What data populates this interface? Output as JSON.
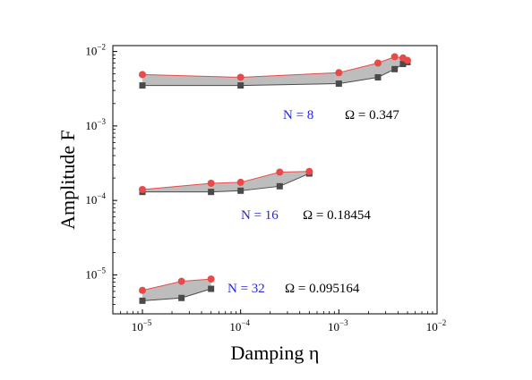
{
  "chart_data": {
    "type": "line",
    "xlabel": "Damping η",
    "ylabel": "Amplitude F",
    "xscale": "log",
    "yscale": "log",
    "xlim": [
      5e-06,
      0.01
    ],
    "ylim": [
      3e-06,
      0.012
    ],
    "x_ticks": [
      {
        "base": "10",
        "exp": "−5",
        "value": 1e-05
      },
      {
        "base": "10",
        "exp": "−4",
        "value": 0.0001
      },
      {
        "base": "10",
        "exp": "−3",
        "value": 0.001
      },
      {
        "base": "10",
        "exp": "−2",
        "value": 0.01
      }
    ],
    "y_ticks": [
      {
        "base": "10",
        "exp": "−5",
        "value": 1e-05
      },
      {
        "base": "10",
        "exp": "−4",
        "value": 0.0001
      },
      {
        "base": "10",
        "exp": "−3",
        "value": 0.001
      },
      {
        "base": "10",
        "exp": "−2",
        "value": 0.01
      }
    ],
    "grid": false,
    "series_colors": {
      "upper": "#e84a4a",
      "lower": "#4a4a4a",
      "fill": "#bdbdbd",
      "label_n": "#2727d6",
      "label_omega": "#000000"
    },
    "groups": [
      {
        "n_label": "N = 8",
        "omega_label": "Ω = 0.347",
        "x": [
          1e-05,
          0.0001,
          0.001,
          0.0025,
          0.0037,
          0.0045,
          0.005
        ],
        "upper": [
          0.0049,
          0.0045,
          0.0052,
          0.007,
          0.0085,
          0.0082,
          0.0076
        ],
        "lower": [
          0.0035,
          0.0035,
          0.0037,
          0.0045,
          0.0058,
          0.0068,
          0.0072
        ]
      },
      {
        "n_label": "N = 16",
        "omega_label": "Ω = 0.18454",
        "x": [
          1e-05,
          5e-05,
          0.0001,
          0.00025,
          0.0005
        ],
        "upper": [
          0.00014,
          0.00017,
          0.000175,
          0.00024,
          0.000245
        ],
        "lower": [
          0.00013,
          0.00013,
          0.000135,
          0.000155,
          0.00023
        ]
      },
      {
        "n_label": "N = 32",
        "omega_label": "Ω = 0.095164",
        "x": [
          1e-05,
          2.5e-05,
          5e-05
        ],
        "upper": [
          6.2e-06,
          8.2e-06,
          8.8e-06
        ],
        "lower": [
          4.5e-06,
          4.9e-06,
          6.5e-06
        ]
      }
    ]
  }
}
